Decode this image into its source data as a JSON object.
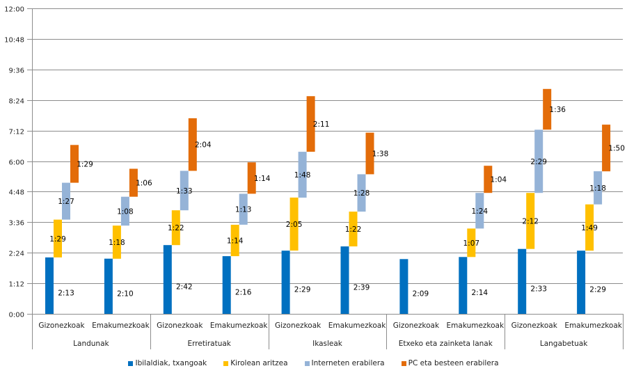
{
  "chart_data": {
    "type": "bar",
    "stacked": true,
    "title": "",
    "xlabel": "",
    "ylabel": "",
    "y_unit": "minutes (displayed as h:mm)",
    "ylim": [
      0,
      720
    ],
    "y_ticks": [
      "0:00",
      "1:12",
      "2:24",
      "3:36",
      "4:48",
      "6:00",
      "7:12",
      "8:24",
      "9:36",
      "10:48",
      "12:00"
    ],
    "grid": true,
    "legend_position": "bottom",
    "groups": [
      "Landunak",
      "Erretiratuak",
      "Ikasleak",
      "Etxeko eta zainketa lanak",
      "Langabetuak"
    ],
    "categories": [
      "Gizonezkoak",
      "Emakumezkoak",
      "Gizonezkoak",
      "Emakumezkoak",
      "Gizonezkoak",
      "Emakumezkoak",
      "Gizonezkoak",
      "Emakumezkoak",
      "Gizonezkoak",
      "Emakumezkoak"
    ],
    "series": [
      {
        "name": "Ibilaldiak, txangoak",
        "color": "#0070C0",
        "values": [
          133,
          130,
          162,
          136,
          149,
          159,
          129,
          134,
          153,
          149
        ],
        "labels": [
          "2:13",
          "2:10",
          "2:42",
          "2:16",
          "2:29",
          "2:39",
          "2:09",
          "2:14",
          "2:33",
          "2:29"
        ]
      },
      {
        "name": "Kirolean aritzea",
        "color": "#FFC000",
        "values": [
          89,
          78,
          82,
          74,
          125,
          82,
          null,
          67,
          132,
          109
        ],
        "labels": [
          "1:29",
          "1:18",
          "1:22",
          "1:14",
          "2:05",
          "1:22",
          "",
          "1:07",
          "2:12",
          "1:49"
        ]
      },
      {
        "name": "Interneten erabilera",
        "color": "#95B3D7",
        "values": [
          87,
          68,
          93,
          73,
          108,
          88,
          null,
          84,
          149,
          78
        ],
        "labels": [
          "1:27",
          "1:08",
          "1:33",
          "1:13",
          "1:48",
          "1:28",
          "",
          "1:24",
          "2:29",
          "1:18"
        ]
      },
      {
        "name": "PC eta besteen erabilera",
        "color": "#E36C09",
        "values": [
          89,
          66,
          124,
          74,
          131,
          98,
          null,
          64,
          96,
          110
        ],
        "labels": [
          "1:29",
          "1:06",
          "2:04",
          "1:14",
          "2:11",
          "1:38",
          "",
          "1:04",
          "1:36",
          "1:50"
        ]
      }
    ]
  }
}
